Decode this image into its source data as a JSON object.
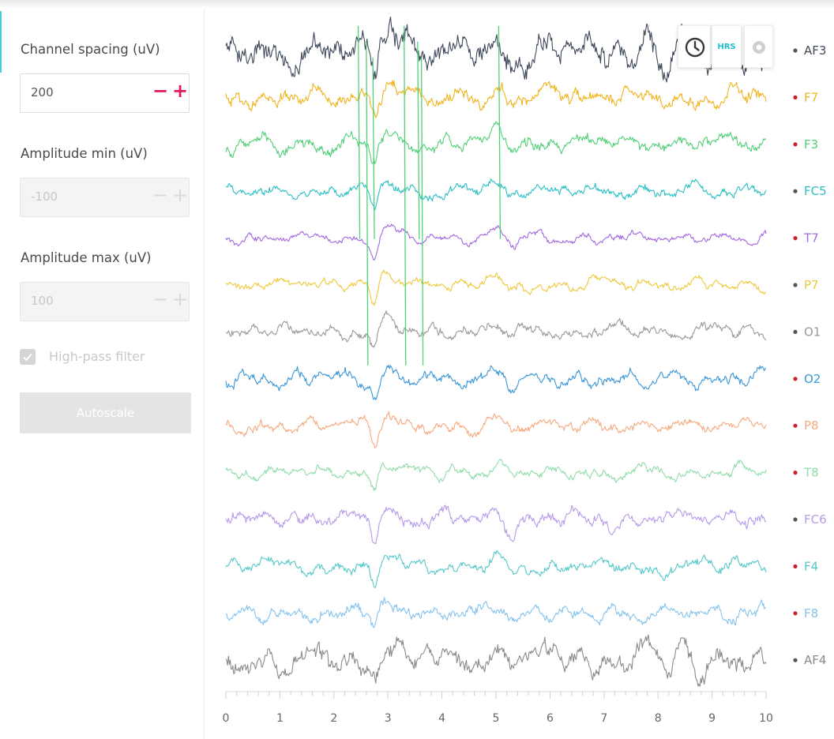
{
  "settings": {
    "channel_spacing_label": "Channel spacing (uV)",
    "channel_spacing_value": "200",
    "amplitude_min_label": "Amplitude min (uV)",
    "amplitude_min_value": "-100",
    "amplitude_max_label": "Amplitude max (uV)",
    "amplitude_max_value": "100",
    "minus_symbol": "−",
    "plus_symbol": "+",
    "high_pass_label": "High-pass filter",
    "high_pass_checked": true,
    "autoscale_label": "Autoscale"
  },
  "toolbar": {
    "history_icon": "clock-icon",
    "hrs_label": "HRS",
    "record_icon": "record-icon"
  },
  "chart_data": {
    "type": "line",
    "x": {
      "min": 0,
      "max": 10,
      "ticks": [
        0,
        1,
        2,
        3,
        4,
        5,
        6,
        7,
        8,
        9,
        10
      ]
    },
    "channels": [
      {
        "name": "AF3",
        "color": "#3f4a5c",
        "dot": "#555555",
        "amp": 26,
        "noise": 0.55
      },
      {
        "name": "F7",
        "color": "#f0b41d",
        "dot": "#cc1f2f",
        "amp": 16,
        "noise": 0.4
      },
      {
        "name": "F3",
        "color": "#52d079",
        "dot": "#cc1f2f",
        "amp": 13,
        "noise": 0.45
      },
      {
        "name": "FC5",
        "color": "#2bc0c5",
        "dot": "#555555",
        "amp": 11,
        "noise": 0.4
      },
      {
        "name": "T7",
        "color": "#a46ae0",
        "dot": "#cc1f2f",
        "amp": 9,
        "noise": 0.3
      },
      {
        "name": "P7",
        "color": "#eec93a",
        "dot": "#555555",
        "amp": 11,
        "noise": 0.25
      },
      {
        "name": "O1",
        "color": "#9a9a9a",
        "dot": "#555555",
        "amp": 12,
        "noise": 0.35
      },
      {
        "name": "O2",
        "color": "#3a97d8",
        "dot": "#cc1f2f",
        "amp": 12,
        "noise": 0.4
      },
      {
        "name": "P8",
        "color": "#f5aa7f",
        "dot": "#cc1f2f",
        "amp": 12,
        "noise": 0.35
      },
      {
        "name": "T8",
        "color": "#92dcaa",
        "dot": "#cc1f2f",
        "amp": 11,
        "noise": 0.3
      },
      {
        "name": "FC6",
        "color": "#b89bea",
        "dot": "#555555",
        "amp": 14,
        "noise": 0.35
      },
      {
        "name": "F4",
        "color": "#55c9c9",
        "dot": "#cc1f2f",
        "amp": 13,
        "noise": 0.35
      },
      {
        "name": "F8",
        "color": "#86c3ee",
        "dot": "#cc1f2f",
        "amp": 14,
        "noise": 0.35
      },
      {
        "name": "AF4",
        "color": "#8a8a8a",
        "dot": "#555555",
        "amp": 22,
        "noise": 0.45
      }
    ]
  }
}
